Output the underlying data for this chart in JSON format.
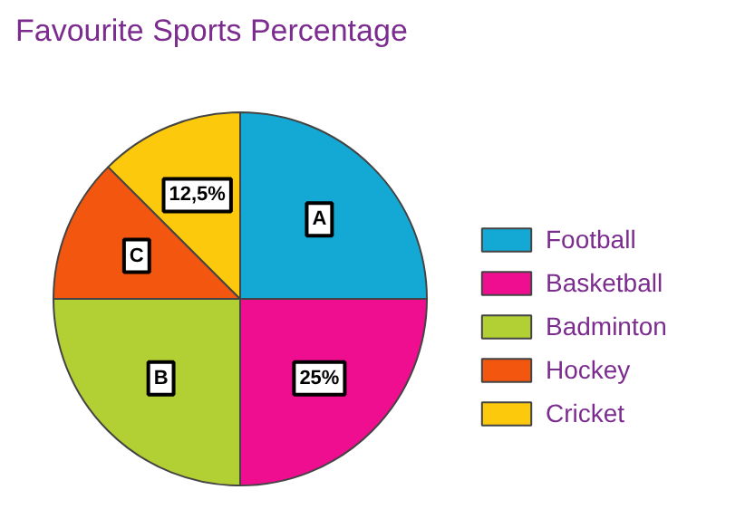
{
  "chart_data": {
    "type": "pie",
    "title": "Favourite Sports Percentage",
    "categories": [
      "Football",
      "Basketball",
      "Badminton",
      "Hockey",
      "Cricket"
    ],
    "values": [
      25,
      25,
      25,
      12.5,
      12.5
    ],
    "colors": [
      "#14a8d4",
      "#ee0e8f",
      "#b2cf34",
      "#f2560f",
      "#fdc90c"
    ],
    "value_labels": [
      "A",
      "25%",
      "B",
      "C",
      "12,5%"
    ],
    "legend": "right"
  }
}
